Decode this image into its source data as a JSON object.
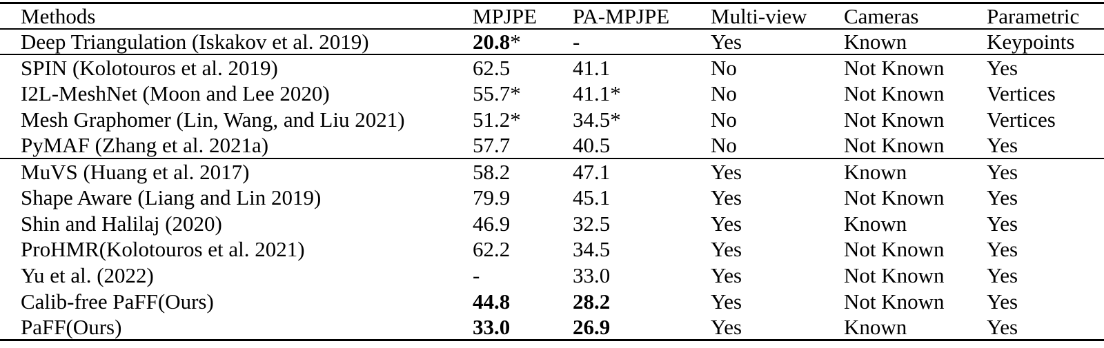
{
  "table": {
    "columns": [
      "Methods",
      "MPJPE",
      "PA-MPJPE",
      "Multi-view",
      "Cameras",
      "Parametric"
    ],
    "groups": [
      {
        "rows": [
          {
            "method": "Deep Triangulation (Iskakov et al. 2019)",
            "mpjpe": "20.8",
            "mpjpe_star": "*",
            "mpjpe_bold": true,
            "pa_mpjpe": "-",
            "pa_mpjpe_star": "",
            "pa_mpjpe_bold": false,
            "multi_view": "Yes",
            "cameras": "Known",
            "parametric": "Keypoints"
          }
        ]
      },
      {
        "rows": [
          {
            "method": "SPIN (Kolotouros et al. 2019)",
            "mpjpe": "62.5",
            "mpjpe_star": "",
            "mpjpe_bold": false,
            "pa_mpjpe": "41.1",
            "pa_mpjpe_star": "",
            "pa_mpjpe_bold": false,
            "multi_view": "No",
            "cameras": "Not Known",
            "parametric": "Yes"
          },
          {
            "method": "I2L-MeshNet (Moon and Lee 2020)",
            "mpjpe": "55.7",
            "mpjpe_star": "*",
            "mpjpe_bold": false,
            "pa_mpjpe": "41.1",
            "pa_mpjpe_star": "*",
            "pa_mpjpe_bold": false,
            "multi_view": "No",
            "cameras": "Not Known",
            "parametric": "Vertices"
          },
          {
            "method": "Mesh Graphomer (Lin, Wang, and Liu 2021)",
            "mpjpe": "51.2",
            "mpjpe_star": "*",
            "mpjpe_bold": false,
            "pa_mpjpe": "34.5",
            "pa_mpjpe_star": "*",
            "pa_mpjpe_bold": false,
            "multi_view": "No",
            "cameras": "Not Known",
            "parametric": "Vertices"
          },
          {
            "method": "PyMAF (Zhang et al. 2021a)",
            "mpjpe": "57.7",
            "mpjpe_star": "",
            "mpjpe_bold": false,
            "pa_mpjpe": "40.5",
            "pa_mpjpe_star": "",
            "pa_mpjpe_bold": false,
            "multi_view": "No",
            "cameras": "Not Known",
            "parametric": "Yes"
          }
        ]
      },
      {
        "rows": [
          {
            "method": "MuVS (Huang et al. 2017)",
            "mpjpe": "58.2",
            "mpjpe_star": "",
            "mpjpe_bold": false,
            "pa_mpjpe": "47.1",
            "pa_mpjpe_star": "",
            "pa_mpjpe_bold": false,
            "multi_view": "Yes",
            "cameras": "Known",
            "parametric": "Yes"
          },
          {
            "method": "Shape Aware (Liang and Lin 2019)",
            "mpjpe": "79.9",
            "mpjpe_star": "",
            "mpjpe_bold": false,
            "pa_mpjpe": "45.1",
            "pa_mpjpe_star": "",
            "pa_mpjpe_bold": false,
            "multi_view": "Yes",
            "cameras": "Not Known",
            "parametric": "Yes"
          },
          {
            "method": "Shin and Halilaj (2020)",
            "mpjpe": "46.9",
            "mpjpe_star": "",
            "mpjpe_bold": false,
            "pa_mpjpe": "32.5",
            "pa_mpjpe_star": "",
            "pa_mpjpe_bold": false,
            "multi_view": "Yes",
            "cameras": "Known",
            "parametric": "Yes"
          },
          {
            "method": "ProHMR(Kolotouros et al. 2021)",
            "mpjpe": "62.2",
            "mpjpe_star": "",
            "mpjpe_bold": false,
            "pa_mpjpe": "34.5",
            "pa_mpjpe_star": "",
            "pa_mpjpe_bold": false,
            "multi_view": "Yes",
            "cameras": "Not Known",
            "parametric": "Yes"
          },
          {
            "method": "Yu et al. (2022)",
            "mpjpe": "-",
            "mpjpe_star": "",
            "mpjpe_bold": false,
            "pa_mpjpe": "33.0",
            "pa_mpjpe_star": "",
            "pa_mpjpe_bold": false,
            "multi_view": "Yes",
            "cameras": "Not Known",
            "parametric": "Yes"
          },
          {
            "method": "Calib-free PaFF(Ours)",
            "mpjpe": "44.8",
            "mpjpe_star": "",
            "mpjpe_bold": true,
            "pa_mpjpe": "28.2",
            "pa_mpjpe_star": "",
            "pa_mpjpe_bold": true,
            "multi_view": "Yes",
            "cameras": "Not Known",
            "parametric": "Yes"
          },
          {
            "method": "PaFF(Ours)",
            "mpjpe": "33.0",
            "mpjpe_star": "",
            "mpjpe_bold": true,
            "pa_mpjpe": "26.9",
            "pa_mpjpe_star": "",
            "pa_mpjpe_bold": true,
            "multi_view": "Yes",
            "cameras": "Known",
            "parametric": "Yes"
          }
        ]
      }
    ]
  }
}
